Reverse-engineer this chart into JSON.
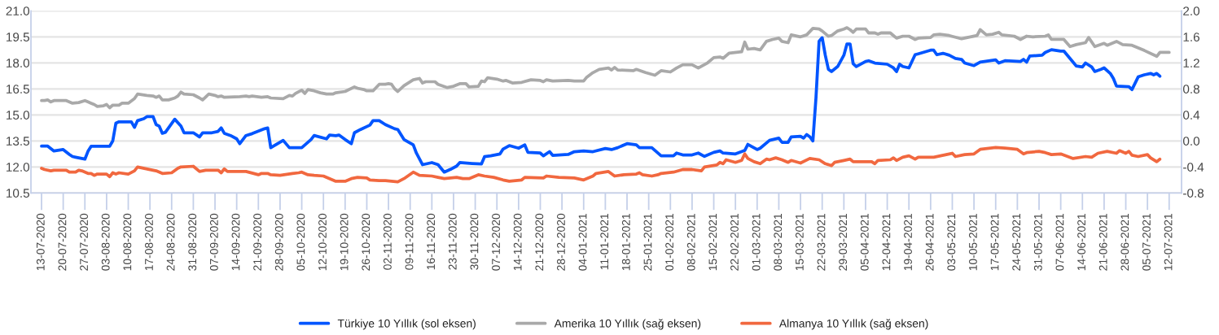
{
  "chart_data": {
    "type": "line",
    "line_style": "solid",
    "grid": "y",
    "legend": "bottom",
    "xlim": [
      "2020-07-09T14:00",
      "2021-07-16T00:00"
    ],
    "xticks": [
      {
        "value": "2020-07-13",
        "label": "13-07-2020"
      },
      {
        "value": "2020-07-20",
        "label": "20-07-2020"
      },
      {
        "value": "2020-07-27",
        "label": "27-07-2020"
      },
      {
        "value": "2020-08-03",
        "label": "03-08-2020"
      },
      {
        "value": "2020-08-10",
        "label": "10-08-2020"
      },
      {
        "value": "2020-08-17",
        "label": "17-08-2020"
      },
      {
        "value": "2020-08-24",
        "label": "24-08-2020"
      },
      {
        "value": "2020-08-31",
        "label": "31-08-2020"
      },
      {
        "value": "2020-09-07",
        "label": "07-09-2020"
      },
      {
        "value": "2020-09-14",
        "label": "14-09-2020"
      },
      {
        "value": "2020-09-21",
        "label": "21-09-2020"
      },
      {
        "value": "2020-09-28",
        "label": "28-09-2020"
      },
      {
        "value": "2020-10-05",
        "label": "05-10-2020"
      },
      {
        "value": "2020-10-12",
        "label": "12-10-2020"
      },
      {
        "value": "2020-10-19",
        "label": "19-10-2020"
      },
      {
        "value": "2020-10-26",
        "label": "26-10-2020"
      },
      {
        "value": "2020-11-02",
        "label": "02-11-2020"
      },
      {
        "value": "2020-11-09",
        "label": "09-11-2020"
      },
      {
        "value": "2020-11-16",
        "label": "16-11-2020"
      },
      {
        "value": "2020-11-23",
        "label": "23-11-2020"
      },
      {
        "value": "2020-11-30",
        "label": "30-11-2020"
      },
      {
        "value": "2020-12-07",
        "label": "07-12-2020"
      },
      {
        "value": "2020-12-14",
        "label": "14-12-2020"
      },
      {
        "value": "2020-12-21",
        "label": "21-12-2020"
      },
      {
        "value": "2020-12-28",
        "label": "28-12-2020"
      },
      {
        "value": "2021-01-04",
        "label": "04-01-2021"
      },
      {
        "value": "2021-01-11",
        "label": "11-01-2021"
      },
      {
        "value": "2021-01-18",
        "label": "18-01-2021"
      },
      {
        "value": "2021-01-25",
        "label": "25-01-2021"
      },
      {
        "value": "2021-02-01",
        "label": "01-02-2021"
      },
      {
        "value": "2021-02-08",
        "label": "08-02-2021"
      },
      {
        "value": "2021-02-15",
        "label": "15-02-2021"
      },
      {
        "value": "2021-02-22",
        "label": "22-02-2021"
      },
      {
        "value": "2021-03-01",
        "label": "01-03-2021"
      },
      {
        "value": "2021-03-08",
        "label": "08-03-2021"
      },
      {
        "value": "2021-03-15",
        "label": "15-03-2021"
      },
      {
        "value": "2021-03-22",
        "label": "22-03-2021"
      },
      {
        "value": "2021-03-29",
        "label": "29-03-2021"
      },
      {
        "value": "2021-04-05",
        "label": "05-04-2021"
      },
      {
        "value": "2021-04-12",
        "label": "12-04-2021"
      },
      {
        "value": "2021-04-19",
        "label": "19-04-2021"
      },
      {
        "value": "2021-04-26",
        "label": "26-04-2021"
      },
      {
        "value": "2021-05-03",
        "label": "03-05-2021"
      },
      {
        "value": "2021-05-10",
        "label": "10-05-2021"
      },
      {
        "value": "2021-05-17",
        "label": "17-05-2021"
      },
      {
        "value": "2021-05-24",
        "label": "24-05-2021"
      },
      {
        "value": "2021-05-31",
        "label": "31-05-2021"
      },
      {
        "value": "2021-06-07",
        "label": "07-06-2021"
      },
      {
        "value": "2021-06-14",
        "label": "14-06-2021"
      },
      {
        "value": "2021-06-21",
        "label": "21-06-2021"
      },
      {
        "value": "2021-06-28",
        "label": "28-06-2021"
      },
      {
        "value": "2021-07-05",
        "label": "05-07-2021"
      },
      {
        "value": "2021-07-12",
        "label": "12-07-2021"
      }
    ],
    "ylim": [
      10.5,
      21
    ],
    "yticks": [
      10.5,
      {
        "value": 12,
        "label": "12.0"
      },
      13.5,
      {
        "value": 15,
        "label": "15.0"
      },
      16.5,
      {
        "value": 18,
        "label": "18.0"
      },
      19.5,
      {
        "value": 21,
        "label": "21.0"
      }
    ],
    "y2lim": [
      -0.8,
      2
    ],
    "y2ticks": [
      -0.8,
      -0.4,
      {
        "value": 0,
        "label": "0.0"
      },
      0.4,
      0.8,
      1.2,
      1.6,
      {
        "value": 2,
        "label": "2.0"
      }
    ],
    "series": [
      {
        "name": "Türkiye 10 Yıllık (sol eksen)",
        "color": "#0055ff",
        "axis": "y",
        "x": [
          "2020-07-13",
          "2020-07-15",
          "2020-07-17",
          "2020-07-20",
          "2020-07-22",
          "2020-07-23",
          "2020-07-24",
          "2020-07-27",
          "2020-07-28",
          "2020-07-29",
          "2020-08-04",
          "2020-08-05",
          "2020-08-06",
          "2020-08-07",
          "2020-08-11",
          "2020-08-12",
          "2020-08-13",
          "2020-08-15",
          "2020-08-16",
          "2020-08-18",
          "2020-08-19",
          "2020-08-20",
          "2020-08-21",
          "2020-08-22",
          "2020-08-25",
          "2020-08-27",
          "2020-08-28",
          "2020-08-31",
          "2020-09-02",
          "2020-09-03",
          "2020-09-06",
          "2020-09-08",
          "2020-09-09",
          "2020-09-10",
          "2020-09-12",
          "2020-09-14",
          "2020-09-15",
          "2020-09-17",
          "2020-09-19",
          "2020-09-23",
          "2020-09-24",
          "2020-09-25",
          "2020-09-29",
          "2020-10-01",
          "2020-10-05",
          "2020-10-08",
          "2020-10-09",
          "2020-10-13",
          "2020-10-14",
          "2020-10-16",
          "2020-10-17",
          "2020-10-19",
          "2020-10-21",
          "2020-10-22",
          "2020-10-24",
          "2020-10-27",
          "2020-10-28",
          "2020-10-30",
          "2020-11-01",
          "2020-11-04",
          "2020-11-05",
          "2020-11-07",
          "2020-11-10",
          "2020-11-11",
          "2020-11-13",
          "2020-11-16",
          "2020-11-18",
          "2020-11-20",
          "2020-11-22",
          "2020-11-24",
          "2020-11-25",
          "2020-11-29",
          "2020-12-02",
          "2020-12-03",
          "2020-12-05",
          "2020-12-08",
          "2020-12-09",
          "2020-12-11",
          "2020-12-14",
          "2020-12-16",
          "2020-12-17",
          "2020-12-21",
          "2020-12-22",
          "2020-12-24",
          "2020-12-25",
          "2020-12-30",
          "2021-01-01",
          "2021-01-04",
          "2021-01-07",
          "2021-01-11",
          "2021-01-13",
          "2021-01-15",
          "2021-01-18",
          "2021-01-21",
          "2021-01-22",
          "2021-01-26",
          "2021-01-29",
          "2021-02-02",
          "2021-02-03",
          "2021-02-05",
          "2021-02-08",
          "2021-02-10",
          "2021-02-12",
          "2021-02-15",
          "2021-02-17",
          "2021-02-18",
          "2021-02-22",
          "2021-02-25",
          "2021-02-26",
          "2021-03-01",
          "2021-03-02",
          "2021-03-05",
          "2021-03-08",
          "2021-03-09",
          "2021-03-11",
          "2021-03-12",
          "2021-03-15",
          "2021-03-16",
          "2021-03-17",
          "2021-03-18",
          "2021-03-19",
          "2021-03-20",
          "2021-03-21",
          "2021-03-22",
          "2021-03-23",
          "2021-03-24",
          "2021-03-25",
          "2021-03-27",
          "2021-03-29",
          "2021-03-30",
          "2021-03-31",
          "2021-04-01",
          "2021-04-02",
          "2021-04-05",
          "2021-04-06",
          "2021-04-08",
          "2021-04-12",
          "2021-04-14",
          "2021-04-15",
          "2021-04-16",
          "2021-04-17",
          "2021-04-19",
          "2021-04-21",
          "2021-04-22",
          "2021-04-26",
          "2021-04-27",
          "2021-04-28",
          "2021-04-30",
          "2021-05-02",
          "2021-05-04",
          "2021-05-06",
          "2021-05-07",
          "2021-05-10",
          "2021-05-12",
          "2021-05-17",
          "2021-05-18",
          "2021-05-20",
          "2021-05-25",
          "2021-05-26",
          "2021-05-27",
          "2021-05-28",
          "2021-06-01",
          "2021-06-02",
          "2021-06-04",
          "2021-06-07",
          "2021-06-08",
          "2021-06-11",
          "2021-06-12",
          "2021-06-14",
          "2021-06-15",
          "2021-06-17",
          "2021-06-18",
          "2021-06-20",
          "2021-06-21",
          "2021-06-23",
          "2021-06-24",
          "2021-06-25",
          "2021-06-29",
          "2021-06-30",
          "2021-07-02",
          "2021-07-04",
          "2021-07-06",
          "2021-07-07",
          "2021-07-08",
          "2021-07-09"
        ],
        "values": [
          13.2,
          13.2,
          12.92,
          13.0,
          12.72,
          12.6,
          12.56,
          12.45,
          12.9,
          13.19,
          13.19,
          13.5,
          14.52,
          14.6,
          14.6,
          14.28,
          14.67,
          14.78,
          14.9,
          14.9,
          14.44,
          14.35,
          13.94,
          14.0,
          14.75,
          14.36,
          13.97,
          13.97,
          13.73,
          13.97,
          13.97,
          14.05,
          14.25,
          13.94,
          13.81,
          13.62,
          13.34,
          13.81,
          13.92,
          14.2,
          14.25,
          13.11,
          13.53,
          13.11,
          13.11,
          13.58,
          13.81,
          13.62,
          13.84,
          13.8,
          13.84,
          13.58,
          13.34,
          13.97,
          14.16,
          14.41,
          14.67,
          14.67,
          14.44,
          14.2,
          14.16,
          13.58,
          13.27,
          12.8,
          12.13,
          12.25,
          12.13,
          11.7,
          11.86,
          12.05,
          12.25,
          12.2,
          12.17,
          12.59,
          12.64,
          12.75,
          13.03,
          13.23,
          13.08,
          13.27,
          12.84,
          12.8,
          12.64,
          12.88,
          12.67,
          12.72,
          12.88,
          12.92,
          12.88,
          13.06,
          13.0,
          13.11,
          13.34,
          13.27,
          13.11,
          13.11,
          12.64,
          12.64,
          12.8,
          12.69,
          12.69,
          12.8,
          12.61,
          12.84,
          12.92,
          12.8,
          12.75,
          12.95,
          13.3,
          13.0,
          13.08,
          13.53,
          13.66,
          13.42,
          13.42,
          13.73,
          13.77,
          13.66,
          13.87,
          13.74,
          13.5,
          16.0,
          19.25,
          19.45,
          18.44,
          17.63,
          17.5,
          17.79,
          18.44,
          19.09,
          19.09,
          17.95,
          17.79,
          18.08,
          18.12,
          17.99,
          17.92,
          17.71,
          17.5,
          17.92,
          17.79,
          17.71,
          18.47,
          18.52,
          18.73,
          18.73,
          18.47,
          18.55,
          18.44,
          18.25,
          18.2,
          17.99,
          17.84,
          18.04,
          18.17,
          17.99,
          18.12,
          18.08,
          18.2,
          18.04,
          18.39,
          18.44,
          18.6,
          18.76,
          18.68,
          18.68,
          18.04,
          17.82,
          17.76,
          17.99,
          17.76,
          17.5,
          17.63,
          17.71,
          17.39,
          17.1,
          16.66,
          16.63,
          16.46,
          17.19,
          17.31,
          17.39,
          17.31,
          17.39,
          17.23
        ]
      },
      {
        "name": "Amerika 10 Yıllık (sağ eksen)",
        "color": "#a9a9a9",
        "axis": "y2",
        "x": [
          "2020-07-13",
          "2020-07-14",
          "2020-07-15",
          "2020-07-16",
          "2020-07-17",
          "2020-07-21",
          "2020-07-23",
          "2020-07-25",
          "2020-07-27",
          "2020-07-28",
          "2020-07-29",
          "2020-07-30",
          "2020-07-31",
          "2020-08-02",
          "2020-08-03",
          "2020-08-04",
          "2020-08-05",
          "2020-08-07",
          "2020-08-08",
          "2020-08-10",
          "2020-08-12",
          "2020-08-13",
          "2020-08-16",
          "2020-08-18",
          "2020-08-19",
          "2020-08-20",
          "2020-08-21",
          "2020-08-23",
          "2020-08-25",
          "2020-08-26",
          "2020-08-27",
          "2020-08-28",
          "2020-08-31",
          "2020-09-02",
          "2020-09-03",
          "2020-09-05",
          "2020-09-07",
          "2020-09-08",
          "2020-09-09",
          "2020-09-10",
          "2020-09-15",
          "2020-09-17",
          "2020-09-18",
          "2020-09-19",
          "2020-09-22",
          "2020-09-24",
          "2020-09-25",
          "2020-09-29",
          "2020-10-01",
          "2020-10-02",
          "2020-10-03",
          "2020-10-05",
          "2020-10-06",
          "2020-10-07",
          "2020-10-09",
          "2020-10-11",
          "2020-10-13",
          "2020-10-15",
          "2020-10-16",
          "2020-10-19",
          "2020-10-22",
          "2020-10-23",
          "2020-10-25",
          "2020-10-26",
          "2020-10-28",
          "2020-10-30",
          "2020-11-01",
          "2020-11-02",
          "2020-11-03",
          "2020-11-04",
          "2020-11-05",
          "2020-11-07",
          "2020-11-10",
          "2020-11-12",
          "2020-11-13",
          "2020-11-14",
          "2020-11-17",
          "2020-11-18",
          "2020-11-21",
          "2020-11-23",
          "2020-11-25",
          "2020-11-27",
          "2020-11-28",
          "2020-12-01",
          "2020-12-02",
          "2020-12-03",
          "2020-12-04",
          "2020-12-07",
          "2020-12-09",
          "2020-12-10",
          "2020-12-12",
          "2020-12-15",
          "2020-12-18",
          "2020-12-21",
          "2020-12-22",
          "2020-12-23",
          "2020-12-25",
          "2020-12-30",
          "2021-01-01",
          "2021-01-04",
          "2021-01-05",
          "2021-01-07",
          "2021-01-09",
          "2021-01-12",
          "2021-01-13",
          "2021-01-14",
          "2021-01-15",
          "2021-01-20",
          "2021-01-21",
          "2021-01-24",
          "2021-01-27",
          "2021-01-29",
          "2021-02-01",
          "2021-02-03",
          "2021-02-05",
          "2021-02-08",
          "2021-02-10",
          "2021-02-13",
          "2021-02-15",
          "2021-02-17",
          "2021-02-18",
          "2021-02-20",
          "2021-02-24",
          "2021-02-25",
          "2021-02-26",
          "2021-02-28",
          "2021-03-02",
          "2021-03-04",
          "2021-03-06",
          "2021-03-08",
          "2021-03-09",
          "2021-03-11",
          "2021-03-12",
          "2021-03-15",
          "2021-03-17",
          "2021-03-19",
          "2021-03-21",
          "2021-03-22",
          "2021-03-24",
          "2021-03-25",
          "2021-03-27",
          "2021-03-29",
          "2021-03-30",
          "2021-03-31",
          "2021-04-01",
          "2021-04-02",
          "2021-04-05",
          "2021-04-06",
          "2021-04-08",
          "2021-04-09",
          "2021-04-10",
          "2021-04-13",
          "2021-04-14",
          "2021-04-15",
          "2021-04-17",
          "2021-04-19",
          "2021-04-21",
          "2021-04-22",
          "2021-04-26",
          "2021-04-27",
          "2021-04-29",
          "2021-05-02",
          "2021-05-06",
          "2021-05-11",
          "2021-05-12",
          "2021-05-14",
          "2021-05-16",
          "2021-05-18",
          "2021-05-19",
          "2021-05-23",
          "2021-05-25",
          "2021-05-27",
          "2021-05-29",
          "2021-06-02",
          "2021-06-03",
          "2021-06-04",
          "2021-06-06",
          "2021-06-08",
          "2021-06-10",
          "2021-06-12",
          "2021-06-15",
          "2021-06-16",
          "2021-06-18",
          "2021-06-21",
          "2021-06-22",
          "2021-06-25",
          "2021-06-27",
          "2021-06-30",
          "2021-07-04",
          "2021-07-08",
          "2021-07-09",
          "2021-07-12"
        ],
        "values": [
          0.62,
          0.62,
          0.63,
          0.6,
          0.62,
          0.62,
          0.58,
          0.59,
          0.62,
          0.6,
          0.58,
          0.56,
          0.53,
          0.54,
          0.56,
          0.51,
          0.55,
          0.55,
          0.58,
          0.58,
          0.65,
          0.72,
          0.7,
          0.69,
          0.67,
          0.69,
          0.63,
          0.63,
          0.66,
          0.69,
          0.75,
          0.72,
          0.71,
          0.66,
          0.63,
          0.72,
          0.7,
          0.68,
          0.69,
          0.67,
          0.68,
          0.69,
          0.68,
          0.69,
          0.67,
          0.68,
          0.66,
          0.65,
          0.7,
          0.69,
          0.73,
          0.78,
          0.73,
          0.79,
          0.77,
          0.74,
          0.72,
          0.72,
          0.74,
          0.76,
          0.83,
          0.81,
          0.79,
          0.77,
          0.77,
          0.87,
          0.87,
          0.88,
          0.87,
          0.8,
          0.76,
          0.85,
          0.94,
          0.96,
          0.89,
          0.91,
          0.91,
          0.87,
          0.82,
          0.84,
          0.88,
          0.88,
          0.83,
          0.84,
          0.92,
          0.91,
          0.97,
          0.95,
          0.92,
          0.93,
          0.89,
          0.9,
          0.94,
          0.93,
          0.91,
          0.94,
          0.92,
          0.93,
          0.92,
          0.92,
          0.98,
          1.05,
          1.1,
          1.12,
          1.09,
          1.13,
          1.09,
          1.08,
          1.1,
          1.05,
          1.01,
          1.08,
          1.06,
          1.12,
          1.17,
          1.17,
          1.12,
          1.2,
          1.28,
          1.29,
          1.27,
          1.35,
          1.37,
          1.52,
          1.41,
          1.42,
          1.4,
          1.53,
          1.56,
          1.58,
          1.53,
          1.51,
          1.63,
          1.6,
          1.63,
          1.73,
          1.72,
          1.69,
          1.61,
          1.62,
          1.69,
          1.72,
          1.74,
          1.71,
          1.67,
          1.72,
          1.72,
          1.66,
          1.66,
          1.64,
          1.66,
          1.66,
          1.62,
          1.58,
          1.61,
          1.61,
          1.56,
          1.58,
          1.59,
          1.63,
          1.64,
          1.62,
          1.57,
          1.62,
          1.71,
          1.63,
          1.64,
          1.67,
          1.63,
          1.61,
          1.56,
          1.61,
          1.6,
          1.61,
          1.63,
          1.56,
          1.56,
          1.56,
          1.45,
          1.48,
          1.51,
          1.59,
          1.45,
          1.5,
          1.47,
          1.53,
          1.48,
          1.47,
          1.39,
          1.3,
          1.36,
          1.36
        ]
      },
      {
        "name": "Almanya 10 Yıllık (sağ eksen)",
        "color": "#f1683f",
        "axis": "y2",
        "x": [
          "2020-07-13",
          "2020-07-14",
          "2020-07-16",
          "2020-07-17",
          "2020-07-21",
          "2020-07-22",
          "2020-07-24",
          "2020-07-25",
          "2020-07-26",
          "2020-07-28",
          "2020-07-29",
          "2020-07-30",
          "2020-07-31",
          "2020-08-03",
          "2020-08-04",
          "2020-08-05",
          "2020-08-06",
          "2020-08-07",
          "2020-08-10",
          "2020-08-12",
          "2020-08-13",
          "2020-08-18",
          "2020-08-19",
          "2020-08-21",
          "2020-08-24",
          "2020-08-26",
          "2020-08-27",
          "2020-08-31",
          "2020-09-02",
          "2020-09-04",
          "2020-09-08",
          "2020-09-09",
          "2020-09-10",
          "2020-09-11",
          "2020-09-17",
          "2020-09-21",
          "2020-09-22",
          "2020-09-24",
          "2020-09-25",
          "2020-09-28",
          "2020-10-02",
          "2020-10-04",
          "2020-10-05",
          "2020-10-07",
          "2020-10-09",
          "2020-10-12",
          "2020-10-14",
          "2020-10-16",
          "2020-10-19",
          "2020-10-21",
          "2020-10-23",
          "2020-10-26",
          "2020-10-27",
          "2020-10-30",
          "2020-11-01",
          "2020-11-03",
          "2020-11-05",
          "2020-11-07",
          "2020-11-10",
          "2020-11-12",
          "2020-11-16",
          "2020-11-18",
          "2020-11-20",
          "2020-11-24",
          "2020-11-26",
          "2020-11-28",
          "2020-12-01",
          "2020-12-03",
          "2020-12-06",
          "2020-12-09",
          "2020-12-11",
          "2020-12-15",
          "2020-12-16",
          "2020-12-22",
          "2020-12-23",
          "2020-12-27",
          "2021-01-01",
          "2021-01-04",
          "2021-01-07",
          "2021-01-08",
          "2021-01-12",
          "2021-01-14",
          "2021-01-17",
          "2021-01-21",
          "2021-01-22",
          "2021-01-23",
          "2021-01-26",
          "2021-01-28",
          "2021-01-29",
          "2021-02-02",
          "2021-02-05",
          "2021-02-08",
          "2021-02-11",
          "2021-02-12",
          "2021-02-16",
          "2021-02-17",
          "2021-02-18",
          "2021-02-19",
          "2021-02-22",
          "2021-02-24",
          "2021-02-25",
          "2021-02-26",
          "2021-02-28",
          "2021-03-02",
          "2021-03-04",
          "2021-03-05",
          "2021-03-07",
          "2021-03-09",
          "2021-03-11",
          "2021-03-12",
          "2021-03-15",
          "2021-03-18",
          "2021-03-21",
          "2021-03-23",
          "2021-03-25",
          "2021-03-26",
          "2021-03-29",
          "2021-03-31",
          "2021-04-01",
          "2021-04-07",
          "2021-04-08",
          "2021-04-09",
          "2021-04-13",
          "2021-04-14",
          "2021-04-15",
          "2021-04-17",
          "2021-04-19",
          "2021-04-21",
          "2021-04-22",
          "2021-04-27",
          "2021-05-02",
          "2021-05-03",
          "2021-05-04",
          "2021-05-07",
          "2021-05-10",
          "2021-05-12",
          "2021-05-17",
          "2021-05-20",
          "2021-05-24",
          "2021-05-26",
          "2021-05-27",
          "2021-05-31",
          "2021-06-02",
          "2021-06-04",
          "2021-06-07",
          "2021-06-11",
          "2021-06-15",
          "2021-06-17",
          "2021-06-19",
          "2021-06-22",
          "2021-06-25",
          "2021-06-26",
          "2021-06-28",
          "2021-06-29",
          "2021-06-30",
          "2021-07-02",
          "2021-07-05",
          "2021-07-06",
          "2021-07-08",
          "2021-07-09"
        ],
        "values": [
          -0.42,
          -0.44,
          -0.46,
          -0.45,
          -0.45,
          -0.48,
          -0.48,
          -0.45,
          -0.46,
          -0.5,
          -0.5,
          -0.53,
          -0.51,
          -0.51,
          -0.55,
          -0.49,
          -0.51,
          -0.49,
          -0.51,
          -0.46,
          -0.4,
          -0.45,
          -0.46,
          -0.5,
          -0.49,
          -0.42,
          -0.4,
          -0.39,
          -0.47,
          -0.45,
          -0.45,
          -0.49,
          -0.43,
          -0.47,
          -0.47,
          -0.52,
          -0.5,
          -0.5,
          -0.52,
          -0.53,
          -0.5,
          -0.49,
          -0.48,
          -0.52,
          -0.53,
          -0.54,
          -0.58,
          -0.62,
          -0.62,
          -0.58,
          -0.56,
          -0.57,
          -0.6,
          -0.61,
          -0.61,
          -0.62,
          -0.63,
          -0.58,
          -0.48,
          -0.53,
          -0.54,
          -0.56,
          -0.58,
          -0.56,
          -0.58,
          -0.58,
          -0.52,
          -0.54,
          -0.56,
          -0.6,
          -0.62,
          -0.6,
          -0.56,
          -0.57,
          -0.54,
          -0.56,
          -0.57,
          -0.6,
          -0.54,
          -0.5,
          -0.47,
          -0.54,
          -0.52,
          -0.51,
          -0.49,
          -0.52,
          -0.54,
          -0.52,
          -0.5,
          -0.48,
          -0.44,
          -0.44,
          -0.46,
          -0.4,
          -0.37,
          -0.33,
          -0.35,
          -0.29,
          -0.33,
          -0.3,
          -0.2,
          -0.27,
          -0.32,
          -0.35,
          -0.28,
          -0.29,
          -0.26,
          -0.29,
          -0.33,
          -0.3,
          -0.34,
          -0.27,
          -0.29,
          -0.35,
          -0.38,
          -0.33,
          -0.3,
          -0.28,
          -0.32,
          -0.32,
          -0.35,
          -0.3,
          -0.29,
          -0.26,
          -0.3,
          -0.25,
          -0.23,
          -0.28,
          -0.25,
          -0.25,
          -0.2,
          -0.19,
          -0.24,
          -0.21,
          -0.2,
          -0.13,
          -0.1,
          -0.11,
          -0.13,
          -0.2,
          -0.18,
          -0.16,
          -0.18,
          -0.21,
          -0.2,
          -0.27,
          -0.24,
          -0.25,
          -0.19,
          -0.16,
          -0.19,
          -0.15,
          -0.19,
          -0.16,
          -0.22,
          -0.24,
          -0.21,
          -0.26,
          -0.32,
          -0.28
        ]
      }
    ]
  }
}
